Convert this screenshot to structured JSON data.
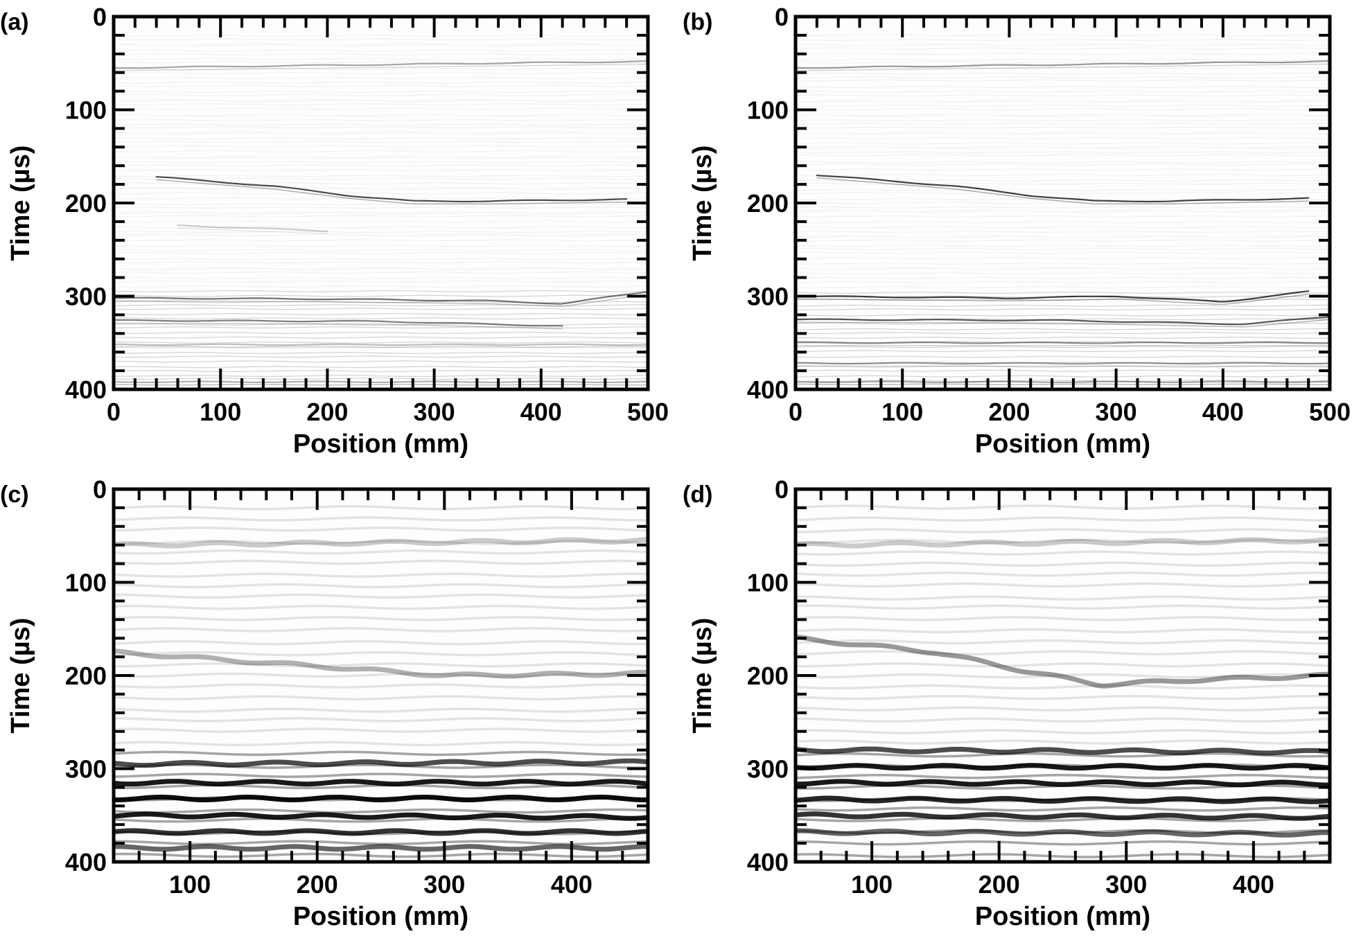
{
  "chart_data": [
    {
      "panel": "(a)",
      "type": "heatmap",
      "xlabel": "Position (mm)",
      "ylabel": "Time (µs)",
      "xlim": [
        0,
        500
      ],
      "ylim": [
        0,
        400
      ],
      "y_inverted": true,
      "xticks": [
        0,
        100,
        200,
        300,
        400,
        500
      ],
      "yticks": [
        0,
        100,
        200,
        300,
        400
      ],
      "colormap": "grayscale",
      "reflectors": [
        {
          "x": [
            0,
            500
          ],
          "y": [
            55,
            48
          ],
          "strength": 0.35
        },
        {
          "x": [
            40,
            150,
            220,
            280,
            350,
            480
          ],
          "y": [
            172,
            182,
            192,
            198,
            198,
            196
          ],
          "strength": 0.7
        },
        {
          "x": [
            60,
            200
          ],
          "y": [
            224,
            230
          ],
          "strength": 0.2
        },
        {
          "x": [
            0,
            200,
            350,
            420,
            500
          ],
          "y": [
            302,
            303,
            305,
            308,
            295
          ],
          "strength": 0.55
        },
        {
          "x": [
            0,
            250,
            420
          ],
          "y": [
            326,
            327,
            332
          ],
          "strength": 0.5
        },
        {
          "x": [
            0,
            500
          ],
          "y": [
            352,
            352
          ],
          "strength": 0.25
        },
        {
          "x": [
            0,
            500
          ],
          "y": [
            392,
            392
          ],
          "strength": 0.3
        }
      ]
    },
    {
      "panel": "(b)",
      "type": "heatmap",
      "xlabel": "Position (mm)",
      "ylabel": "Time (µs)",
      "xlim": [
        0,
        500
      ],
      "ylim": [
        0,
        400
      ],
      "y_inverted": true,
      "xticks": [
        0,
        100,
        200,
        300,
        400,
        500
      ],
      "yticks": [
        0,
        100,
        200,
        300,
        400
      ],
      "colormap": "grayscale",
      "reflectors": [
        {
          "x": [
            0,
            500
          ],
          "y": [
            55,
            48
          ],
          "strength": 0.4
        },
        {
          "x": [
            20,
            150,
            220,
            280,
            350,
            480
          ],
          "y": [
            170,
            182,
            192,
            198,
            198,
            195
          ],
          "strength": 0.75
        },
        {
          "x": [
            0,
            200,
            300,
            400,
            480
          ],
          "y": [
            300,
            302,
            300,
            306,
            295
          ],
          "strength": 0.75
        },
        {
          "x": [
            0,
            250,
            420,
            500
          ],
          "y": [
            325,
            326,
            330,
            322
          ],
          "strength": 0.65
        },
        {
          "x": [
            0,
            500
          ],
          "y": [
            350,
            350
          ],
          "strength": 0.45
        },
        {
          "x": [
            0,
            500
          ],
          "y": [
            372,
            372
          ],
          "strength": 0.4
        },
        {
          "x": [
            0,
            500
          ],
          "y": [
            392,
            392
          ],
          "strength": 0.35
        }
      ]
    },
    {
      "panel": "(c)",
      "type": "heatmap",
      "xlabel": "Position (mm)",
      "ylabel": "Time (µs)",
      "xlim": [
        40,
        460
      ],
      "ylim": [
        0,
        400
      ],
      "y_inverted": true,
      "xticks": [
        100,
        200,
        300,
        400
      ],
      "yticks": [
        0,
        100,
        200,
        300,
        400
      ],
      "colormap": "grayscale",
      "reflectors": [
        {
          "x": [
            40,
            460
          ],
          "y": [
            60,
            55
          ],
          "strength": 0.2
        },
        {
          "x": [
            40,
            200,
            300,
            460
          ],
          "y": [
            175,
            190,
            200,
            198
          ],
          "strength": 0.3
        },
        {
          "x": [
            40,
            460
          ],
          "y": [
            295,
            293
          ],
          "strength": 0.7
        },
        {
          "x": [
            40,
            460
          ],
          "y": [
            315,
            315
          ],
          "strength": 0.9
        },
        {
          "x": [
            40,
            460
          ],
          "y": [
            332,
            332
          ],
          "strength": 0.95
        },
        {
          "x": [
            40,
            460
          ],
          "y": [
            350,
            352
          ],
          "strength": 0.9
        },
        {
          "x": [
            40,
            460
          ],
          "y": [
            368,
            368
          ],
          "strength": 0.8
        },
        {
          "x": [
            40,
            460
          ],
          "y": [
            385,
            385
          ],
          "strength": 0.6
        }
      ]
    },
    {
      "panel": "(d)",
      "type": "heatmap",
      "xlabel": "Position (mm)",
      "ylabel": "Time (µs)",
      "xlim": [
        40,
        460
      ],
      "ylim": [
        0,
        400
      ],
      "y_inverted": true,
      "xticks": [
        100,
        200,
        300,
        400
      ],
      "yticks": [
        0,
        100,
        200,
        300,
        400
      ],
      "colormap": "grayscale",
      "reflectors": [
        {
          "x": [
            40,
            460
          ],
          "y": [
            60,
            55
          ],
          "strength": 0.2
        },
        {
          "x": [
            40,
            150,
            220,
            280,
            350,
            460
          ],
          "y": [
            160,
            175,
            195,
            210,
            205,
            200
          ],
          "strength": 0.4
        },
        {
          "x": [
            40,
            460
          ],
          "y": [
            280,
            282
          ],
          "strength": 0.7
        },
        {
          "x": [
            40,
            460
          ],
          "y": [
            298,
            298
          ],
          "strength": 0.9
        },
        {
          "x": [
            40,
            460
          ],
          "y": [
            315,
            316
          ],
          "strength": 0.9
        },
        {
          "x": [
            40,
            460
          ],
          "y": [
            333,
            334
          ],
          "strength": 0.85
        },
        {
          "x": [
            40,
            460
          ],
          "y": [
            350,
            352
          ],
          "strength": 0.8
        },
        {
          "x": [
            40,
            460
          ],
          "y": [
            368,
            370
          ],
          "strength": 0.6
        }
      ]
    }
  ]
}
